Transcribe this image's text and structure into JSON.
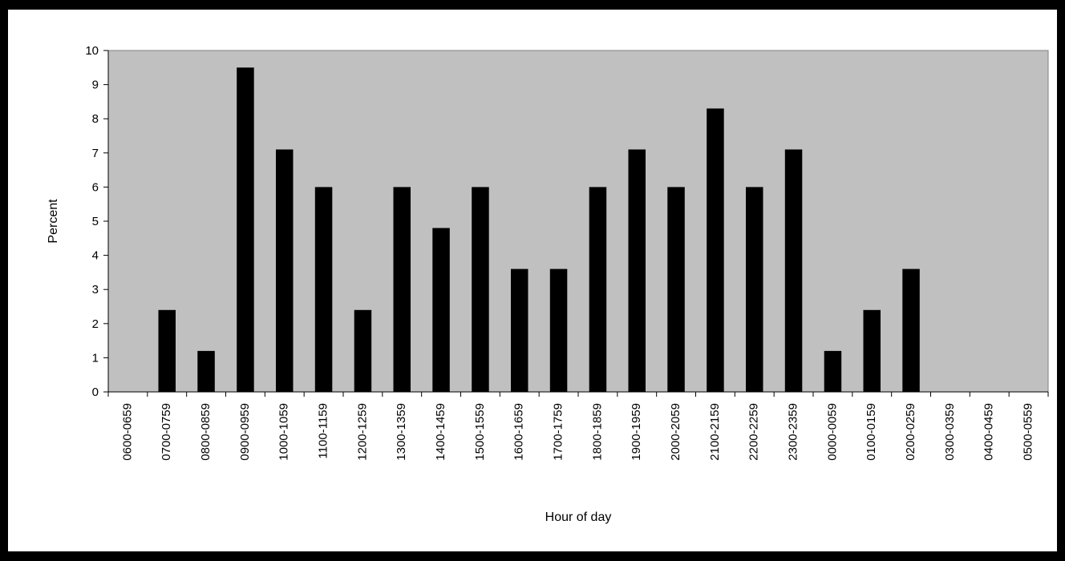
{
  "chart_data": {
    "type": "bar",
    "title": "",
    "xlabel": "Hour of day",
    "ylabel": "Percent",
    "ylim": [
      0,
      10
    ],
    "yticks": [
      0,
      1,
      2,
      3,
      4,
      5,
      6,
      7,
      8,
      9,
      10
    ],
    "grid": false,
    "legend": "none",
    "categories": [
      "0600-0659",
      "0700-0759",
      "0800-0859",
      "0900-0959",
      "1000-1059",
      "1100-1159",
      "1200-1259",
      "1300-1359",
      "1400-1459",
      "1500-1559",
      "1600-1659",
      "1700-1759",
      "1800-1859",
      "1900-1959",
      "2000-2059",
      "2100-2159",
      "2200-2259",
      "2300-2359",
      "0000-0059",
      "0100-0159",
      "0200-0259",
      "0300-0359",
      "0400-0459",
      "0500-0559"
    ],
    "values": [
      0,
      2.4,
      1.2,
      9.5,
      7.1,
      6.0,
      2.4,
      6.0,
      4.8,
      6.0,
      3.6,
      3.6,
      6.0,
      7.1,
      6.0,
      8.3,
      6.0,
      7.1,
      1.2,
      2.4,
      3.6,
      0,
      0,
      0
    ],
    "colors": {
      "bar": "#000000",
      "plot_background": "#c0c0c0",
      "page_background": "#ffffff"
    }
  }
}
